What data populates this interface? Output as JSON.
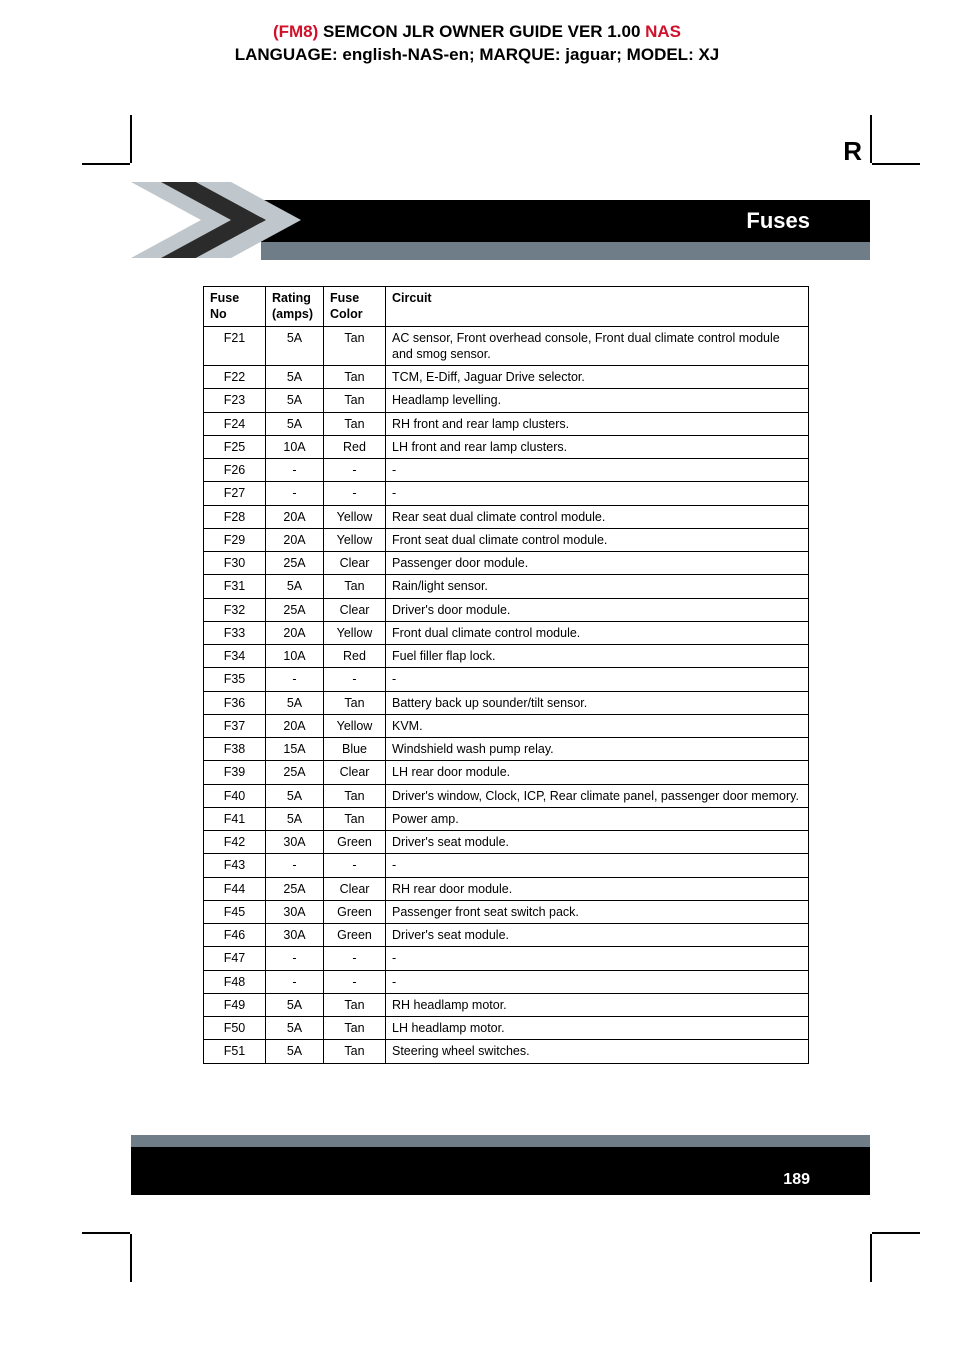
{
  "header": {
    "prefix": "(FM8)",
    "title_mid": " SEMCON JLR OWNER GUIDE VER 1.00 ",
    "suffix": "NAS",
    "line2": "LANGUAGE: english-NAS-en;   MARQUE: jaguar;   MODEL: XJ"
  },
  "side_letter": "R",
  "banner_title": "Fuses",
  "page_number": "189",
  "colors": {
    "red": "#d0112b",
    "black": "#000000",
    "grey": "#6f7d88",
    "white": "#ffffff",
    "chevron_dark": "#2b2b2b",
    "chevron_light": "#bfc6cc"
  },
  "table": {
    "columns": [
      "Fuse No",
      "Rating (amps)",
      "Fuse Color",
      "Circuit"
    ],
    "rows": [
      [
        "F21",
        "5A",
        "Tan",
        "AC sensor, Front overhead console, Front dual climate control module and smog sensor."
      ],
      [
        "F22",
        "5A",
        "Tan",
        "TCM, E-Diff, Jaguar Drive selector."
      ],
      [
        "F23",
        "5A",
        "Tan",
        "Headlamp levelling."
      ],
      [
        "F24",
        "5A",
        "Tan",
        "RH front and rear lamp clusters."
      ],
      [
        "F25",
        "10A",
        "Red",
        "LH front and rear lamp clusters."
      ],
      [
        "F26",
        "-",
        "-",
        "-"
      ],
      [
        "F27",
        "-",
        "-",
        "-"
      ],
      [
        "F28",
        "20A",
        "Yellow",
        "Rear seat dual climate control module."
      ],
      [
        "F29",
        "20A",
        "Yellow",
        "Front seat dual climate control module."
      ],
      [
        "F30",
        "25A",
        "Clear",
        "Passenger door module."
      ],
      [
        "F31",
        "5A",
        "Tan",
        "Rain/light sensor."
      ],
      [
        "F32",
        "25A",
        "Clear",
        "Driver's door module."
      ],
      [
        "F33",
        "20A",
        "Yellow",
        "Front dual climate control module."
      ],
      [
        "F34",
        "10A",
        "Red",
        "Fuel filler flap lock."
      ],
      [
        "F35",
        "-",
        "-",
        "-"
      ],
      [
        "F36",
        "5A",
        "Tan",
        "Battery back up sounder/tilt sensor."
      ],
      [
        "F37",
        "20A",
        "Yellow",
        "KVM."
      ],
      [
        "F38",
        "15A",
        "Blue",
        "Windshield wash pump relay."
      ],
      [
        "F39",
        "25A",
        "Clear",
        "LH rear door module."
      ],
      [
        "F40",
        "5A",
        "Tan",
        "Driver's window, Clock, ICP, Rear climate panel, passenger door memory."
      ],
      [
        "F41",
        "5A",
        "Tan",
        "Power amp."
      ],
      [
        "F42",
        "30A",
        "Green",
        "Driver's seat module."
      ],
      [
        "F43",
        "-",
        "-",
        "-"
      ],
      [
        "F44",
        "25A",
        "Clear",
        "RH rear door module."
      ],
      [
        "F45",
        "30A",
        "Green",
        "Passenger front seat switch pack."
      ],
      [
        "F46",
        "30A",
        "Green",
        "Driver's seat module."
      ],
      [
        "F47",
        "-",
        "-",
        "-"
      ],
      [
        "F48",
        "-",
        "-",
        "-"
      ],
      [
        "F49",
        "5A",
        "Tan",
        "RH headlamp motor."
      ],
      [
        "F50",
        "5A",
        "Tan",
        "LH headlamp motor."
      ],
      [
        "F51",
        "5A",
        "Tan",
        "Steering wheel switches."
      ]
    ]
  }
}
